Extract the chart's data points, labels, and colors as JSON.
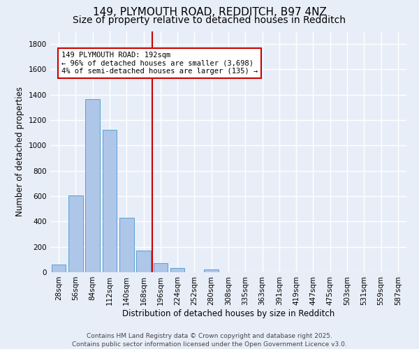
{
  "title_line1": "149, PLYMOUTH ROAD, REDDITCH, B97 4NZ",
  "title_line2": "Size of property relative to detached houses in Redditch",
  "xlabel": "Distribution of detached houses by size in Redditch",
  "ylabel": "Number of detached properties",
  "bar_labels": [
    "28sqm",
    "56sqm",
    "84sqm",
    "112sqm",
    "140sqm",
    "168sqm",
    "196sqm",
    "224sqm",
    "252sqm",
    "280sqm",
    "308sqm",
    "335sqm",
    "363sqm",
    "391sqm",
    "419sqm",
    "447sqm",
    "475sqm",
    "503sqm",
    "531sqm",
    "559sqm",
    "587sqm"
  ],
  "bar_values": [
    60,
    605,
    1365,
    1125,
    430,
    170,
    70,
    35,
    0,
    20,
    0,
    0,
    0,
    0,
    0,
    0,
    0,
    0,
    0,
    0,
    0
  ],
  "bar_color": "#aec6e8",
  "bar_edgecolor": "#5a9fd4",
  "background_color": "#e8eef8",
  "grid_color": "#ffffff",
  "ylim": [
    0,
    1900
  ],
  "yticks": [
    0,
    200,
    400,
    600,
    800,
    1000,
    1200,
    1400,
    1600,
    1800
  ],
  "property_line_x": 6,
  "annotation_title": "149 PLYMOUTH ROAD: 192sqm",
  "annotation_line1": "← 96% of detached houses are smaller (3,698)",
  "annotation_line2": "4% of semi-detached houses are larger (135) →",
  "annotation_box_color": "#ffffff",
  "annotation_box_edgecolor": "#cc0000",
  "vline_color": "#cc0000",
  "footer_line1": "Contains HM Land Registry data © Crown copyright and database right 2025.",
  "footer_line2": "Contains public sector information licensed under the Open Government Licence v3.0.",
  "title_fontsize": 11,
  "subtitle_fontsize": 10,
  "axis_label_fontsize": 8.5,
  "tick_fontsize": 7.5,
  "annotation_fontsize": 7.5,
  "footer_fontsize": 6.5
}
